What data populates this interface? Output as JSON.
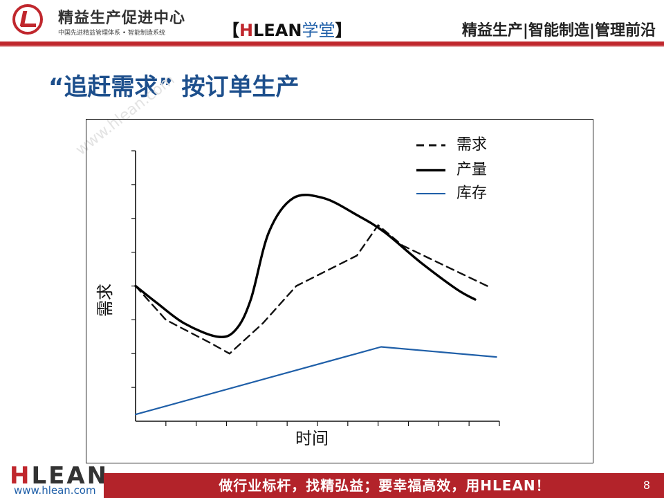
{
  "header": {
    "logo_title": "精益生产促进中心",
    "logo_subtitle": "中国先进精益管理体系 • 智能制造系统",
    "academy_open": "【",
    "academy_h": "H",
    "academy_lean": "LEAN",
    "academy_xuetang": "学堂",
    "academy_close": "】",
    "slogan": "精益生产|智能制造|管理前沿"
  },
  "slide": {
    "title": "“追赶需求” 按订单生产",
    "watermark": "www.hlean.com"
  },
  "colors": {
    "brand_red": "#c0272d",
    "title_blue": "#1d4f8c",
    "inventory_line": "#1f5fa8"
  },
  "chart_data": {
    "type": "line",
    "title": "",
    "xlabel": "时间",
    "ylabel": "需求",
    "xlim": [
      0,
      12
    ],
    "ylim": [
      0,
      8
    ],
    "x_minor_ticks": 12,
    "y_minor_ticks": 8,
    "legend_position": "top-right",
    "series": [
      {
        "name": "需求",
        "style": "dashed",
        "color": "#111111",
        "x": [
          0,
          1.0,
          2.5,
          3.1,
          4.2,
          5.3,
          7.3,
          8.0,
          8.8,
          10.2,
          11.6
        ],
        "y": [
          4.0,
          3.0,
          2.3,
          2.0,
          2.9,
          4.0,
          4.9,
          5.8,
          5.2,
          4.6,
          4.0
        ]
      },
      {
        "name": "产量",
        "style": "solid",
        "color": "#000000",
        "x": [
          0,
          0.7,
          1.6,
          2.7,
          3.3,
          3.8,
          4.4,
          5.2,
          6.2,
          7.3,
          8.2,
          9.4,
          10.6,
          11.2
        ],
        "y": [
          4.0,
          3.5,
          2.9,
          2.5,
          2.7,
          3.6,
          5.6,
          6.6,
          6.6,
          6.1,
          5.6,
          4.7,
          3.9,
          3.6
        ]
      },
      {
        "name": "库存",
        "style": "solid",
        "color": "#1f5fa8",
        "x": [
          0,
          8.1,
          11.9
        ],
        "y": [
          0.2,
          2.2,
          1.9
        ]
      }
    ]
  },
  "footer": {
    "logo_h": "H",
    "logo_rest": "LEAN",
    "url": "www.hlean.com",
    "motto": "做行业标杆，找精弘益；要幸福高效，用HLEAN！",
    "page_number": "8"
  }
}
